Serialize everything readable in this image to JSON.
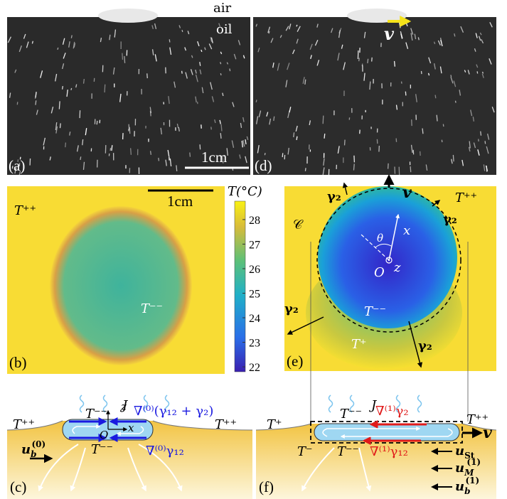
{
  "panel_a": {
    "label": "(a)",
    "air": "air",
    "oil": "oil",
    "scale_bar": "1cm"
  },
  "panel_d": {
    "label": "(d)",
    "velocity": "v"
  },
  "panel_b": {
    "label": "(b)",
    "scale_bar": "1cm",
    "outer_temp": "T⁺⁺",
    "inner_temp": "T⁻⁻"
  },
  "colorbar": {
    "title": "T(°C)",
    "range": [
      21.8,
      28.75
    ],
    "ticks": [
      22,
      23,
      24,
      25,
      26,
      27,
      28
    ]
  },
  "panel_e": {
    "label": "(e)",
    "velocity": "v",
    "outer_temp": "T⁺⁺",
    "inner_temp": "T⁻⁻",
    "wake_temp": "T⁺",
    "contour": "𝒞",
    "gamma_labels": [
      "γ₂",
      "γ₂",
      "γ₂",
      "γ₂"
    ],
    "theta": "θ",
    "x_axis": "x",
    "origin": "O",
    "z_axis": "z"
  },
  "panel_c": {
    "label": "(c)",
    "flux": "J",
    "left_temp": "T⁺⁺",
    "right_temp": "T⁺⁺",
    "top_temp": "T⁻⁻",
    "bottom_temp": "T⁻⁻",
    "z_axis": "z",
    "x_axis": "x",
    "origin": "O",
    "top_gradient": "∇⁽⁰⁾(γ₁₂ + γ₂)",
    "bottom_gradient": "∇⁽⁰⁾γ₁₂",
    "bulk_velocity": {
      "main": "u",
      "sub": "b",
      "sup": "(0)"
    }
  },
  "panel_f": {
    "label": "(f)",
    "flux": "J",
    "left_temp": "T⁺",
    "right_temp": "T⁺⁺",
    "top_temp": "T⁻⁻",
    "bottom_temp": "T⁻⁻",
    "lower_left_temp": "T⁻",
    "top_gradient": "∇⁽¹⁾γ₂",
    "bottom_gradient": "∇⁽¹⁾γ₁₂",
    "velocity": "v",
    "stokes_velocity": {
      "main": "u",
      "sub": "St"
    },
    "marangoni_velocity": {
      "main": "u",
      "sub": "M",
      "sup": "(1)"
    },
    "bulk_velocity": {
      "main": "u",
      "sub": "b",
      "sup": "(1)"
    }
  }
}
